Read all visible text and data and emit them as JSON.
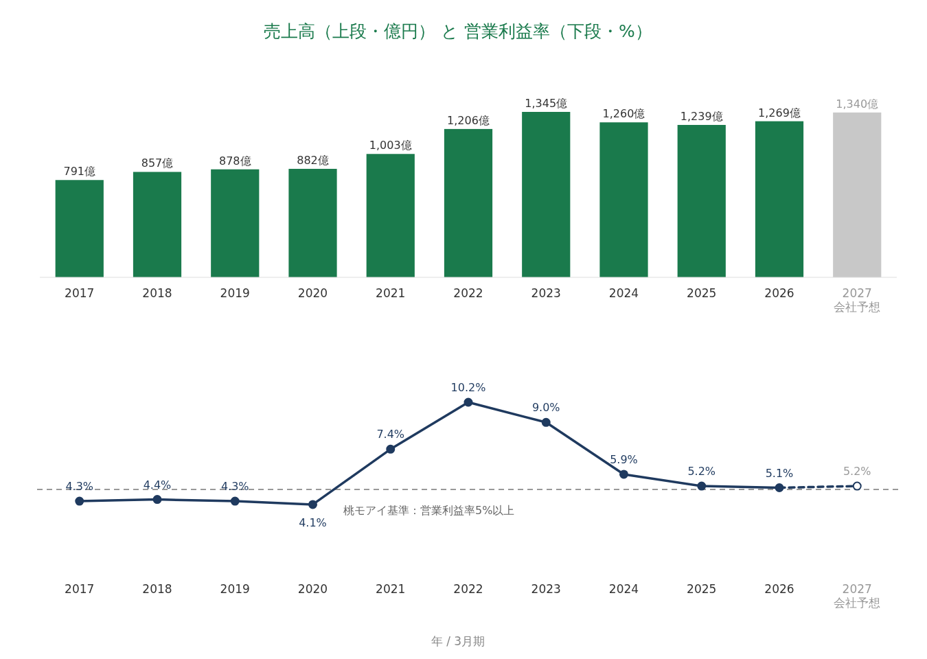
{
  "chart_data": [
    {
      "type": "bar",
      "title": "売上高（上段・億円） と 営業利益率（下段・%）",
      "categories": [
        "2017",
        "2018",
        "2019",
        "2020",
        "2021",
        "2022",
        "2023",
        "2024",
        "2025",
        "2026",
        "2027\n会社予想"
      ],
      "values": [
        791,
        857,
        878,
        882,
        1003,
        1206,
        1345,
        1260,
        1239,
        1269,
        1340
      ],
      "colors": [
        "#1a7a4c",
        "#1a7a4c",
        "#1a7a4c",
        "#1a7a4c",
        "#1a7a4c",
        "#1a7a4c",
        "#1a7a4c",
        "#1a7a4c",
        "#1a7a4c",
        "#1a7a4c",
        "#c8c8c8"
      ],
      "value_labels": [
        "791億",
        "857億",
        "878億",
        "882億",
        "1,003億",
        "1,206億",
        "1,345億",
        "1,260億",
        "1,239億",
        "1,269億",
        "1,340億"
      ]
    },
    {
      "type": "line",
      "xlabel": "年 / 3月期",
      "categories": [
        "2017",
        "2018",
        "2019",
        "2020",
        "2021",
        "2022",
        "2023",
        "2024",
        "2025",
        "2026",
        "2027\n会社予想"
      ],
      "series": [
        {
          "color": "#1f3a5f",
          "values": [
            4.3,
            4.4,
            4.3,
            4.1,
            7.4,
            10.2,
            9.0,
            5.9,
            5.2,
            5.1,
            null
          ],
          "value_labels": [
            "4.3%",
            "4.4%",
            "4.3%",
            "4.1%",
            "7.4%",
            "10.2%",
            "9.0%",
            "5.9%",
            "5.2%",
            "5.1%",
            null
          ],
          "line_style": "solid",
          "marker": "circle"
        },
        {
          "color": "#1f3a5f",
          "values": [
            null,
            null,
            null,
            null,
            null,
            null,
            null,
            null,
            null,
            5.1,
            5.2
          ],
          "value_labels": [
            null,
            null,
            null,
            null,
            null,
            null,
            null,
            null,
            null,
            null,
            "5.2%"
          ],
          "line_style": "dashed",
          "marker": "circle"
        }
      ],
      "ref_lines": [
        {
          "axis": "y",
          "value": 5,
          "label": "桃モアイ基準：営業利益率5%以上",
          "color": "#999999",
          "line_style": "dashed"
        }
      ]
    }
  ]
}
